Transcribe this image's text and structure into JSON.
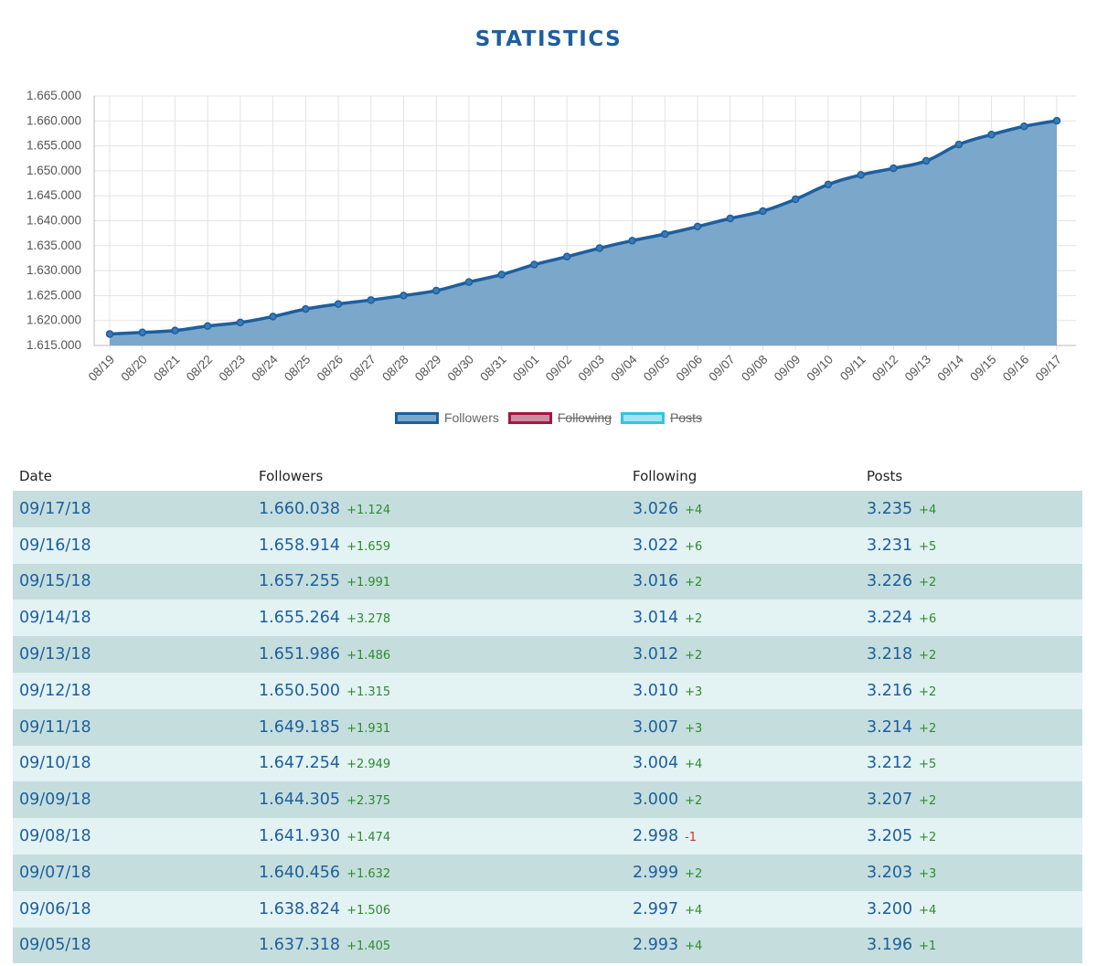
{
  "page": {
    "title": "STATISTICS"
  },
  "colors": {
    "followers_line": "#1d5f9e",
    "followers_fill": "#7ba7cb",
    "following": "#a8153e",
    "posts": "#35c3de",
    "row_odd": "#c5dedd",
    "row_even": "#e3f2f3",
    "delta_positive": "#2e8b2e",
    "delta_negative": "#c0392b"
  },
  "chart_data": {
    "type": "area",
    "grid": true,
    "legend_position": "bottom",
    "ylim": [
      1615000,
      1665000
    ],
    "yticks": [
      "1.665.000",
      "1.660.000",
      "1.655.000",
      "1.650.000",
      "1.645.000",
      "1.640.000",
      "1.635.000",
      "1.630.000",
      "1.625.000",
      "1.620.000",
      "1.615.000"
    ],
    "x": [
      "08/19",
      "08/20",
      "08/21",
      "08/22",
      "08/23",
      "08/24",
      "08/25",
      "08/26",
      "08/27",
      "08/28",
      "08/29",
      "08/30",
      "08/31",
      "09/01",
      "09/02",
      "09/03",
      "09/04",
      "09/05",
      "09/06",
      "09/07",
      "09/08",
      "09/09",
      "09/10",
      "09/11",
      "09/12",
      "09/13",
      "09/14",
      "09/15",
      "09/16",
      "09/17"
    ],
    "series": [
      {
        "name": "Followers",
        "hidden": false,
        "values": [
          1617300,
          1617600,
          1618000,
          1618900,
          1619600,
          1620800,
          1622300,
          1623300,
          1624100,
          1625000,
          1626000,
          1627700,
          1629200,
          1631200,
          1632800,
          1634500,
          1636000,
          1637318,
          1638824,
          1640456,
          1641930,
          1644305,
          1647254,
          1649185,
          1650500,
          1651986,
          1655264,
          1657255,
          1658914,
          1660038
        ]
      },
      {
        "name": "Following",
        "hidden": true
      },
      {
        "name": "Posts",
        "hidden": true
      }
    ]
  },
  "table": {
    "headers": [
      "Date",
      "Followers",
      "Following",
      "Posts"
    ],
    "rows": [
      {
        "date": "09/17/18",
        "followers": "1.660.038",
        "followers_delta": "+1.124",
        "following": "3.026",
        "following_delta": "+4",
        "posts": "3.235",
        "posts_delta": "+4"
      },
      {
        "date": "09/16/18",
        "followers": "1.658.914",
        "followers_delta": "+1.659",
        "following": "3.022",
        "following_delta": "+6",
        "posts": "3.231",
        "posts_delta": "+5"
      },
      {
        "date": "09/15/18",
        "followers": "1.657.255",
        "followers_delta": "+1.991",
        "following": "3.016",
        "following_delta": "+2",
        "posts": "3.226",
        "posts_delta": "+2"
      },
      {
        "date": "09/14/18",
        "followers": "1.655.264",
        "followers_delta": "+3.278",
        "following": "3.014",
        "following_delta": "+2",
        "posts": "3.224",
        "posts_delta": "+6"
      },
      {
        "date": "09/13/18",
        "followers": "1.651.986",
        "followers_delta": "+1.486",
        "following": "3.012",
        "following_delta": "+2",
        "posts": "3.218",
        "posts_delta": "+2"
      },
      {
        "date": "09/12/18",
        "followers": "1.650.500",
        "followers_delta": "+1.315",
        "following": "3.010",
        "following_delta": "+3",
        "posts": "3.216",
        "posts_delta": "+2"
      },
      {
        "date": "09/11/18",
        "followers": "1.649.185",
        "followers_delta": "+1.931",
        "following": "3.007",
        "following_delta": "+3",
        "posts": "3.214",
        "posts_delta": "+2"
      },
      {
        "date": "09/10/18",
        "followers": "1.647.254",
        "followers_delta": "+2.949",
        "following": "3.004",
        "following_delta": "+4",
        "posts": "3.212",
        "posts_delta": "+5"
      },
      {
        "date": "09/09/18",
        "followers": "1.644.305",
        "followers_delta": "+2.375",
        "following": "3.000",
        "following_delta": "+2",
        "posts": "3.207",
        "posts_delta": "+2"
      },
      {
        "date": "09/08/18",
        "followers": "1.641.930",
        "followers_delta": "+1.474",
        "following": "2.998",
        "following_delta": "-1",
        "posts": "3.205",
        "posts_delta": "+2"
      },
      {
        "date": "09/07/18",
        "followers": "1.640.456",
        "followers_delta": "+1.632",
        "following": "2.999",
        "following_delta": "+2",
        "posts": "3.203",
        "posts_delta": "+3"
      },
      {
        "date": "09/06/18",
        "followers": "1.638.824",
        "followers_delta": "+1.506",
        "following": "2.997",
        "following_delta": "+4",
        "posts": "3.200",
        "posts_delta": "+4"
      },
      {
        "date": "09/05/18",
        "followers": "1.637.318",
        "followers_delta": "+1.405",
        "following": "2.993",
        "following_delta": "+4",
        "posts": "3.196",
        "posts_delta": "+1"
      }
    ]
  }
}
